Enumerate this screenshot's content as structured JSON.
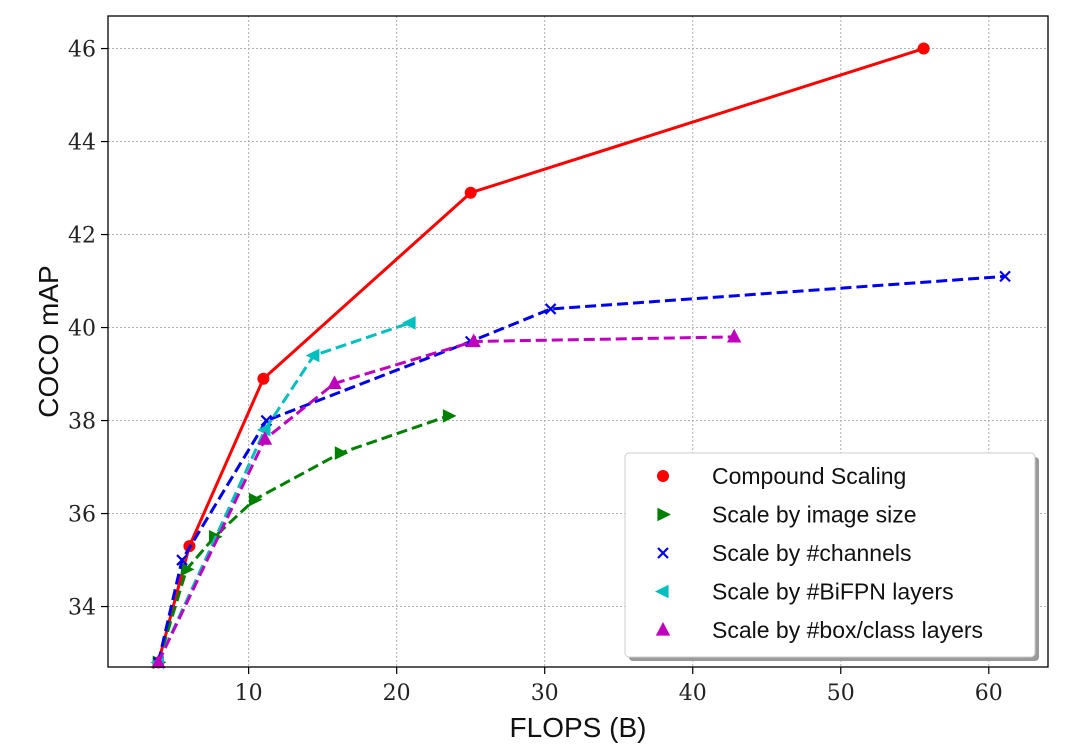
{
  "chart_data": {
    "type": "line",
    "title": "",
    "xlabel": "FLOPS (B)",
    "ylabel": "COCO mAP",
    "xlim": [
      0.5,
      64
    ],
    "ylim": [
      32.7,
      46.7
    ],
    "xticks": [
      10,
      20,
      30,
      40,
      50,
      60
    ],
    "yticks": [
      34,
      36,
      38,
      40,
      42,
      44,
      46
    ],
    "grid": true,
    "legend_position": "bottom-right",
    "series": [
      {
        "name": "Compound Scaling",
        "color": "#ff0000",
        "line_style": "solid",
        "marker": "circle",
        "x": [
          3.9,
          6.0,
          11.0,
          25.0,
          55.6
        ],
        "y": [
          32.8,
          35.3,
          38.9,
          42.9,
          46.0
        ]
      },
      {
        "name": "Scale by image size",
        "color": "#008000",
        "line_style": "dashed",
        "marker": "triangle-right",
        "x": [
          3.9,
          5.8,
          7.7,
          10.4,
          16.2,
          23.5
        ],
        "y": [
          32.8,
          34.8,
          35.5,
          36.3,
          37.3,
          38.1
        ]
      },
      {
        "name": "Scale by #channels",
        "color": "#0000ee",
        "line_style": "dashed",
        "marker": "x",
        "x": [
          3.9,
          5.5,
          11.2,
          25.0,
          30.4,
          61.1
        ],
        "y": [
          32.8,
          35.0,
          38.0,
          39.7,
          40.4,
          41.1
        ]
      },
      {
        "name": "Scale by #BiFPN layers",
        "color": "#00bfbf",
        "line_style": "dashed",
        "marker": "triangle-left",
        "x": [
          3.9,
          11.1,
          14.4,
          20.9
        ],
        "y": [
          32.8,
          37.8,
          39.4,
          40.1
        ]
      },
      {
        "name": "Scale by #box/class layers",
        "color": "#bf00bf",
        "line_style": "dashed",
        "marker": "triangle-up",
        "x": [
          3.9,
          11.1,
          15.8,
          25.2,
          42.8
        ],
        "y": [
          32.8,
          37.6,
          38.8,
          39.7,
          39.8
        ]
      }
    ]
  }
}
